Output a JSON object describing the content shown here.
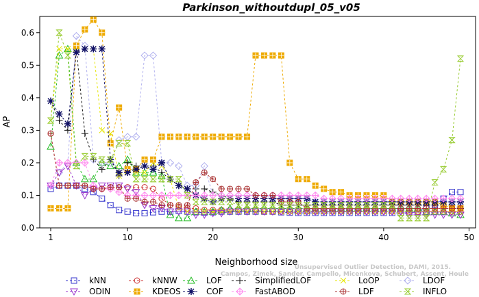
{
  "chart_data": {
    "type": "line",
    "title": "Parkinson_withoutdupl_05_v05",
    "xlabel": "Neighborhood size",
    "ylabel": "AP",
    "xlim": [
      0,
      50
    ],
    "ylim": [
      0,
      0.65
    ],
    "xticks": [
      1,
      10,
      20,
      30,
      40,
      50
    ],
    "yticks": [
      0.0,
      0.1,
      0.2,
      0.3,
      0.4,
      0.5,
      0.6
    ],
    "grid": false,
    "x": [
      1,
      2,
      3,
      4,
      5,
      6,
      7,
      8,
      9,
      10,
      11,
      12,
      13,
      14,
      15,
      16,
      17,
      18,
      19,
      20,
      21,
      22,
      23,
      24,
      25,
      26,
      27,
      28,
      29,
      30,
      31,
      32,
      33,
      34,
      35,
      36,
      37,
      38,
      39,
      40,
      41,
      42,
      43,
      44,
      45,
      46,
      47,
      48,
      49
    ],
    "series": [
      {
        "name": "kNN",
        "color": "#3333cc",
        "marker": "square",
        "values": [
          0.12,
          0.13,
          0.13,
          0.13,
          0.12,
          0.11,
          0.09,
          0.07,
          0.055,
          0.05,
          0.045,
          0.045,
          0.048,
          0.05,
          0.05,
          0.052,
          0.05,
          0.048,
          0.047,
          0.048,
          0.05,
          0.05,
          0.05,
          0.05,
          0.05,
          0.05,
          0.05,
          0.048,
          0.047,
          0.046,
          0.046,
          0.046,
          0.046,
          0.046,
          0.046,
          0.046,
          0.046,
          0.046,
          0.046,
          0.046,
          0.046,
          0.046,
          0.046,
          0.05,
          0.06,
          0.07,
          0.09,
          0.11,
          0.11
        ]
      },
      {
        "name": "kNNW",
        "color": "#cc3333",
        "marker": "circle",
        "values": [
          0.29,
          0.13,
          0.13,
          0.13,
          0.13,
          0.12,
          0.12,
          0.125,
          0.125,
          0.125,
          0.125,
          0.125,
          0.12,
          0.09,
          0.07,
          0.065,
          0.06,
          0.06,
          0.055,
          0.055,
          0.055,
          0.055,
          0.055,
          0.055,
          0.055,
          0.05,
          0.05,
          0.05,
          0.05,
          0.05,
          0.05,
          0.05,
          0.05,
          0.05,
          0.05,
          0.05,
          0.05,
          0.05,
          0.05,
          0.05,
          0.05,
          0.05,
          0.05,
          0.05,
          0.05,
          0.05,
          0.05,
          0.05,
          0.05
        ]
      },
      {
        "name": "LOF",
        "color": "#22bb22",
        "marker": "triangle",
        "values": [
          0.25,
          0.53,
          0.55,
          0.2,
          0.15,
          0.15,
          0.2,
          0.19,
          0.19,
          0.21,
          0.17,
          0.17,
          0.17,
          0.16,
          0.04,
          0.03,
          0.03,
          0.05,
          0.05,
          0.05,
          0.055,
          0.06,
          0.06,
          0.06,
          0.06,
          0.06,
          0.06,
          0.06,
          0.06,
          0.06,
          0.06,
          0.06,
          0.06,
          0.06,
          0.06,
          0.06,
          0.06,
          0.06,
          0.06,
          0.06,
          0.06,
          0.06,
          0.06,
          0.06,
          0.05,
          0.05,
          0.05,
          0.045,
          0.04
        ]
      },
      {
        "name": "SimplifiedLOF",
        "color": "#111111",
        "marker": "plus",
        "values": [
          0.39,
          0.33,
          0.3,
          0.55,
          0.29,
          0.21,
          0.18,
          0.21,
          0.16,
          0.2,
          0.19,
          0.19,
          0.19,
          0.17,
          0.15,
          0.13,
          0.12,
          0.12,
          0.12,
          0.11,
          0.1,
          0.09,
          0.08,
          0.08,
          0.08,
          0.08,
          0.08,
          0.07,
          0.07,
          0.07,
          0.07,
          0.07,
          0.07,
          0.07,
          0.07,
          0.07,
          0.07,
          0.07,
          0.07,
          0.07,
          0.07,
          0.07,
          0.07,
          0.07,
          0.07,
          0.07,
          0.07,
          0.07,
          0.06
        ]
      },
      {
        "name": "LoOP",
        "color": "#e6e600",
        "marker": "x",
        "values": [
          0.33,
          0.55,
          0.55,
          0.55,
          0.55,
          0.55,
          0.3,
          0.29,
          0.16,
          0.17,
          0.17,
          0.17,
          0.2,
          0.19,
          0.15,
          0.06,
          0.05,
          0.05,
          0.05,
          0.05,
          0.05,
          0.05,
          0.05,
          0.05,
          0.05,
          0.05,
          0.05,
          0.05,
          0.05,
          0.05,
          0.05,
          0.05,
          0.05,
          0.05,
          0.05,
          0.05,
          0.05,
          0.05,
          0.05,
          0.05,
          0.05,
          0.05,
          0.05,
          0.05,
          0.05,
          0.05,
          0.05,
          0.05,
          0.05
        ]
      },
      {
        "name": "LDOF",
        "color": "#b0b0ee",
        "marker": "diamond",
        "values": [
          0.13,
          0.17,
          0.2,
          0.59,
          0.56,
          0.21,
          0.2,
          0.2,
          0.27,
          0.28,
          0.28,
          0.53,
          0.53,
          0.2,
          0.2,
          0.19,
          0.13,
          0.13,
          0.19,
          0.1,
          0.1,
          0.1,
          0.1,
          0.1,
          0.1,
          0.1,
          0.09,
          0.09,
          0.09,
          0.09,
          0.09,
          0.08,
          0.08,
          0.08,
          0.08,
          0.08,
          0.08,
          0.08,
          0.08,
          0.08,
          0.08,
          0.08,
          0.08,
          0.08,
          0.08,
          0.08,
          0.08,
          0.08,
          0.08
        ]
      },
      {
        "name": "ODIN",
        "color": "#9933cc",
        "marker": "triangle-down",
        "values": [
          0.13,
          0.17,
          0.19,
          0.13,
          0.1,
          0.12,
          0.13,
          0.13,
          0.13,
          0.12,
          0.11,
          0.07,
          0.06,
          0.06,
          0.05,
          0.05,
          0.05,
          0.04,
          0.04,
          0.045,
          0.045,
          0.05,
          0.05,
          0.05,
          0.05,
          0.05,
          0.05,
          0.05,
          0.05,
          0.05,
          0.05,
          0.05,
          0.05,
          0.05,
          0.05,
          0.05,
          0.05,
          0.05,
          0.05,
          0.05,
          0.05,
          0.05,
          0.04,
          0.04,
          0.04,
          0.04,
          0.04,
          0.04,
          0.04
        ]
      },
      {
        "name": "KDEOS",
        "color": "#eeaa00",
        "marker": "boxed-square",
        "values": [
          0.06,
          0.06,
          0.06,
          0.56,
          0.61,
          0.64,
          0.6,
          0.26,
          0.37,
          0.18,
          0.18,
          0.21,
          0.21,
          0.28,
          0.28,
          0.28,
          0.28,
          0.28,
          0.28,
          0.28,
          0.28,
          0.28,
          0.28,
          0.28,
          0.53,
          0.53,
          0.53,
          0.53,
          0.2,
          0.15,
          0.15,
          0.13,
          0.12,
          0.11,
          0.11,
          0.1,
          0.1,
          0.1,
          0.1,
          0.1,
          0.08,
          0.08,
          0.08,
          0.08,
          0.08,
          0.08,
          0.07,
          0.06,
          0.06
        ]
      },
      {
        "name": "COF",
        "color": "#111166",
        "marker": "asterisk",
        "values": [
          0.39,
          0.35,
          0.32,
          0.54,
          0.55,
          0.55,
          0.55,
          0.21,
          0.17,
          0.17,
          0.18,
          0.19,
          0.18,
          0.2,
          0.15,
          0.13,
          0.12,
          0.1,
          0.09,
          0.08,
          0.09,
          0.09,
          0.09,
          0.09,
          0.09,
          0.09,
          0.09,
          0.09,
          0.09,
          0.09,
          0.09,
          0.08,
          0.08,
          0.08,
          0.08,
          0.08,
          0.08,
          0.08,
          0.08,
          0.08,
          0.08,
          0.08,
          0.08,
          0.08,
          0.08,
          0.08,
          0.08,
          0.08,
          0.08
        ]
      },
      {
        "name": "FastABOD",
        "color": "#ff88ee",
        "marker": "diamond-plus",
        "values": [
          0.13,
          0.2,
          0.2,
          0.2,
          0.2,
          0.13,
          0.12,
          0.12,
          0.11,
          0.1,
          0.1,
          0.1,
          0.1,
          0.1,
          0.1,
          0.1,
          0.1,
          0.1,
          0.1,
          0.1,
          0.1,
          0.1,
          0.1,
          0.1,
          0.1,
          0.1,
          0.1,
          0.1,
          0.1,
          0.1,
          0.1,
          0.1,
          0.09,
          0.09,
          0.09,
          0.09,
          0.09,
          0.09,
          0.09,
          0.09,
          0.09,
          0.09,
          0.09,
          0.09,
          0.09,
          0.09,
          0.09,
          0.09,
          0.09
        ]
      },
      {
        "name": "LDF",
        "color": "#aa3333",
        "marker": "circle-plus",
        "values": [
          0.29,
          0.13,
          0.13,
          0.13,
          0.13,
          0.12,
          0.12,
          0.125,
          0.125,
          0.09,
          0.09,
          0.08,
          0.08,
          0.07,
          0.07,
          0.07,
          0.07,
          0.14,
          0.17,
          0.15,
          0.12,
          0.12,
          0.12,
          0.12,
          0.1,
          0.1,
          0.1,
          0.08,
          0.08,
          0.08,
          0.06,
          0.06,
          0.06,
          0.06,
          0.06,
          0.06,
          0.06,
          0.06,
          0.06,
          0.06,
          0.06,
          0.06,
          0.06,
          0.06,
          0.06,
          0.06,
          0.06,
          0.06,
          0.06
        ]
      },
      {
        "name": "INFLO",
        "color": "#99cc33",
        "marker": "hourglass",
        "values": [
          0.33,
          0.6,
          0.53,
          0.19,
          0.22,
          0.22,
          0.21,
          0.21,
          0.26,
          0.26,
          0.15,
          0.15,
          0.15,
          0.15,
          0.15,
          0.15,
          0.1,
          0.08,
          0.08,
          0.08,
          0.08,
          0.08,
          0.07,
          0.07,
          0.07,
          0.07,
          0.07,
          0.07,
          0.07,
          0.07,
          0.07,
          0.07,
          0.07,
          0.07,
          0.07,
          0.07,
          0.07,
          0.07,
          0.07,
          0.07,
          0.07,
          0.03,
          0.03,
          0.03,
          0.03,
          0.14,
          0.18,
          0.27,
          0.52
        ]
      }
    ],
    "legend": {
      "placement": "bottom",
      "columns": 6
    },
    "watermark": "Campos, Zimek, Sander, Campello, Micenkova, Schubert, Assent, Houle",
    "watermark_line1": "Unsupervised Outlier Detection, DAMI, 2015."
  }
}
